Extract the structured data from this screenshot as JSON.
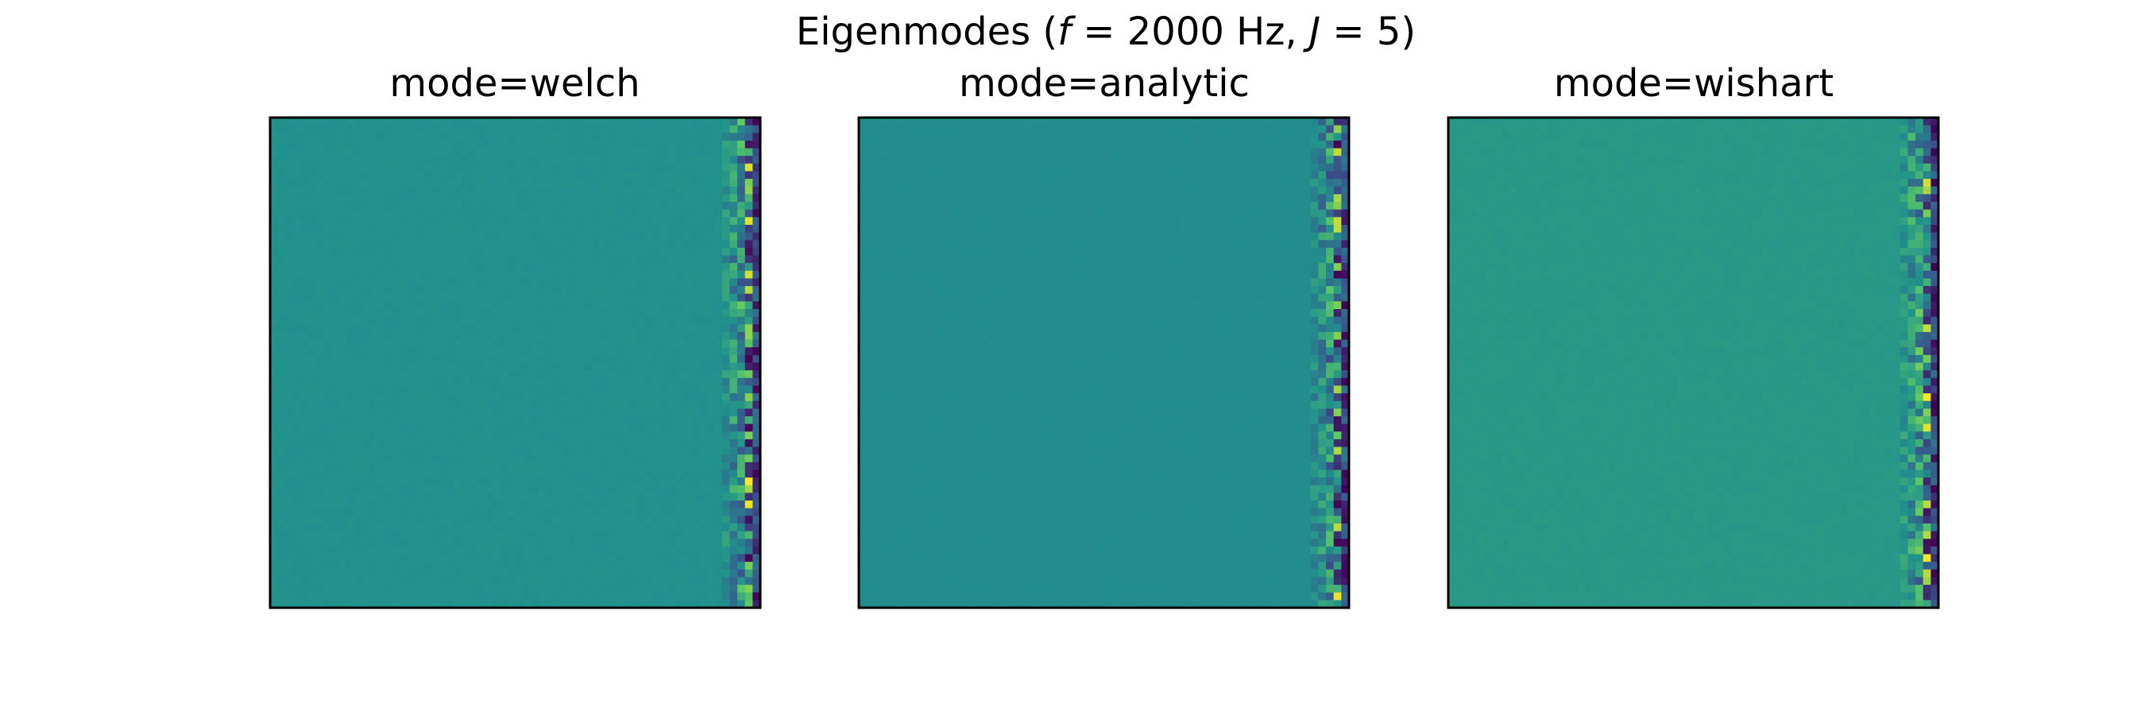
{
  "figure": {
    "title": "Eigenmodes (",
    "title_math_var": "f",
    "title_mid": " = 2000 Hz, ",
    "title_math_var2": "J",
    "title_end": " = 5)"
  },
  "chart_data": [
    {
      "type": "heatmap",
      "title": "mode=welch",
      "grid": false,
      "colormap": "viridis",
      "rows": 64,
      "cols": 64,
      "background_value": 0.5,
      "structured_columns": 5,
      "seed": 11
    },
    {
      "type": "heatmap",
      "title": "mode=analytic",
      "grid": false,
      "colormap": "viridis",
      "rows": 64,
      "cols": 64,
      "background_value": 0.48,
      "structured_columns": 5,
      "seed": 23
    },
    {
      "type": "heatmap",
      "title": "mode=wishart",
      "grid": false,
      "colormap": "viridis",
      "rows": 64,
      "cols": 64,
      "background_value": 0.53,
      "structured_columns": 5,
      "seed": 37
    }
  ],
  "colors": {
    "frame": "#000000",
    "viridis_stops": [
      "#440154",
      "#3b528b",
      "#21918c",
      "#5ec962",
      "#fde725"
    ]
  }
}
